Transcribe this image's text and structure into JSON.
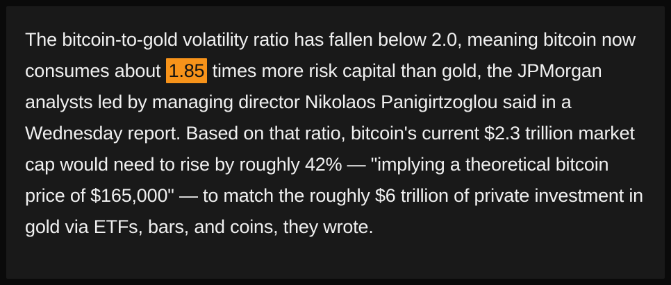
{
  "page": {
    "outer_background": "#0a0a0a",
    "card_background": "#191919",
    "text_color": "#f0f0f0"
  },
  "article": {
    "paragraph": {
      "text_before_highlight": "The bitcoin-to-gold volatility ratio has fallen below 2.0, meaning bitcoin now consumes about ",
      "highlighted_value": "1.85",
      "text_after_highlight": " times more risk capital than gold, the JPMorgan analysts led by managing director Nikolaos Panigirtzoglou said in a Wednesday report. Based on that ratio, bitcoin's current $2.3 trillion market cap would need to rise by roughly 42% — \"implying a theoretical bitcoin price of $165,000\" — to match the roughly $6 trillion of private investment in gold via ETFs, bars, and coins, they wrote.",
      "highlight_color": "#f7931a",
      "highlight_text_color": "#121212"
    }
  }
}
